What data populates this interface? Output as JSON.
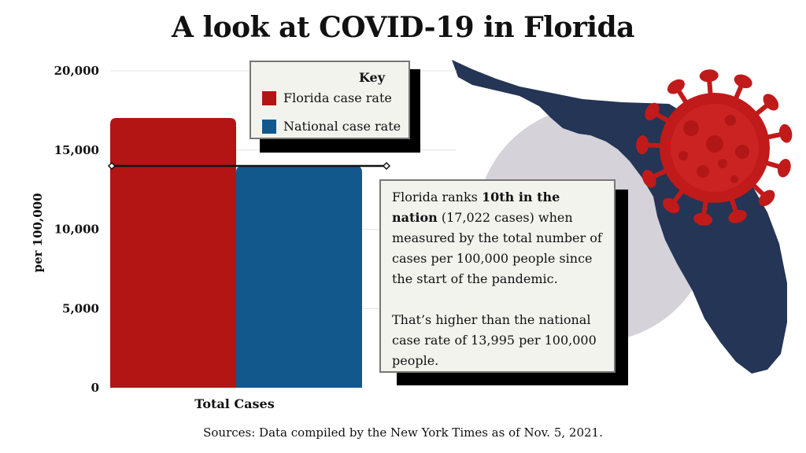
{
  "title": "A look at COVID-19 in Florida",
  "colors": {
    "florida": "#b31515",
    "national": "#13588d",
    "map": "#243555",
    "circle": "#d5d2da",
    "virus": "#c11a1a"
  },
  "key": {
    "title": "Key",
    "florida_label": "Florida case rate",
    "national_label": "National case rate"
  },
  "note": {
    "p1_prefix": "Florida ranks ",
    "p1_bold": "10th in the nation",
    "p1_suffix": " (17,022 cases) when measured by the total number of cases per 100,000 people since the start of the pandemic.",
    "p2": "That’s higher than the national case rate of 13,995 per 100,000 people."
  },
  "sources": "Sources: Data compiled by the New York Times as of Nov. 5, 2021.",
  "chart_data": {
    "type": "bar",
    "title": "A look at COVID-19 in Florida",
    "categories": [
      "Total Cases"
    ],
    "series": [
      {
        "name": "Florida case rate",
        "values": [
          17022
        ]
      },
      {
        "name": "National case rate",
        "values": [
          13995
        ]
      }
    ],
    "xlabel": "Total Cases",
    "ylabel": "per 100,000",
    "ylim": [
      0,
      20000
    ],
    "yticks": [
      0,
      5000,
      10000,
      15000,
      20000
    ],
    "ytick_labels": [
      "0",
      "5,000",
      "10,000",
      "15,000",
      "20,000"
    ],
    "reference_line": {
      "label": "National case rate",
      "value": 13995
    },
    "grid": true
  }
}
